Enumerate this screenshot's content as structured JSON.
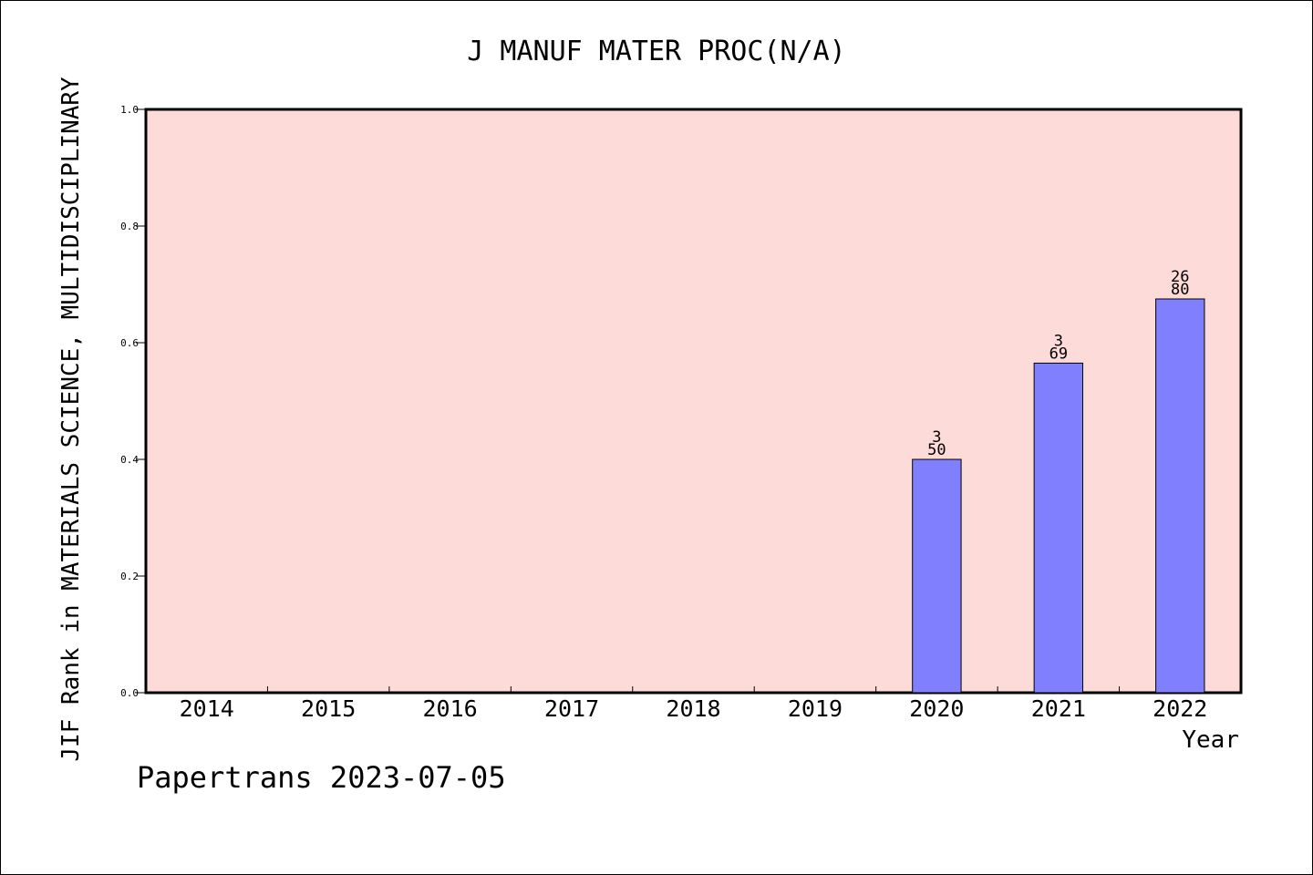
{
  "chart_data": {
    "type": "bar",
    "title": "J MANUF MATER PROC(N/A)",
    "xlabel": "Year",
    "ylabel": "JIF Rank in MATERIALS SCIENCE, MULTIDISCIPLINARY",
    "categories": [
      "2014",
      "2015",
      "2016",
      "2017",
      "2018",
      "2019",
      "2020",
      "2021",
      "2022"
    ],
    "values": [
      null,
      null,
      null,
      null,
      null,
      null,
      0.4,
      0.565,
      0.675
    ],
    "bar_labels": [
      null,
      null,
      null,
      null,
      null,
      null,
      {
        "top": "3",
        "bottom": "50"
      },
      {
        "top": "3",
        "bottom": "69"
      },
      {
        "top": "26",
        "bottom": "80"
      }
    ],
    "ylim": [
      0,
      1
    ],
    "yticks": [
      "0.0",
      "0.2",
      "0.4",
      "0.6",
      "0.8",
      "1.0"
    ],
    "footer": "Papertrans 2023-07-05",
    "colors": {
      "plot_background": "#fddbd8",
      "bar": "#8080ff",
      "bar_edge": "#000000"
    },
    "grid": false
  }
}
